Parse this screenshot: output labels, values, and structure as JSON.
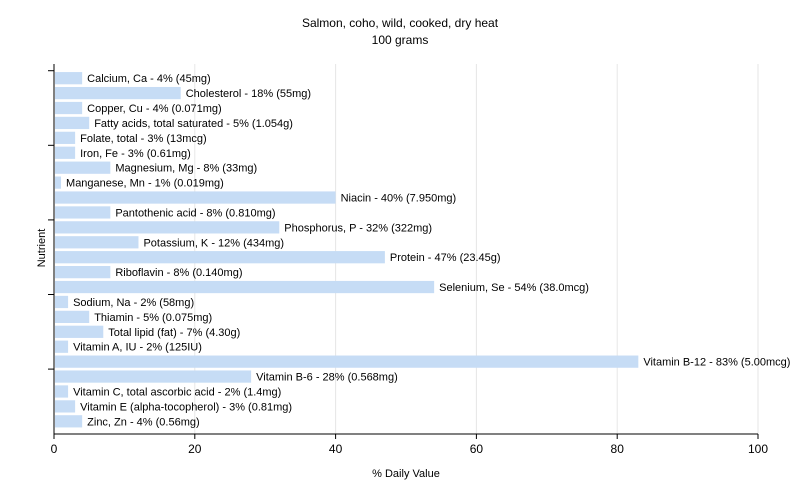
{
  "chart_data": {
    "type": "bar",
    "orientation": "horizontal",
    "title": "Salmon, coho, wild, cooked, dry heat",
    "subtitle": "100 grams",
    "xlabel": "% Daily Value",
    "ylabel": "Nutrient",
    "xlim": [
      0,
      100
    ],
    "xticks": [
      0,
      20,
      40,
      60,
      80,
      100
    ],
    "grid": true,
    "bar_color": "#c6dcf5",
    "categories": [
      "Calcium, Ca",
      "Cholesterol",
      "Copper, Cu",
      "Fatty acids, total saturated",
      "Folate, total",
      "Iron, Fe",
      "Magnesium, Mg",
      "Manganese, Mn",
      "Niacin",
      "Pantothenic acid",
      "Phosphorus, P",
      "Potassium, K",
      "Protein",
      "Riboflavin",
      "Selenium, Se",
      "Sodium, Na",
      "Thiamin",
      "Total lipid (fat)",
      "Vitamin A, IU",
      "Vitamin B-12",
      "Vitamin B-6",
      "Vitamin C, total ascorbic acid",
      "Vitamin E (alpha-tocopherol)",
      "Zinc, Zn"
    ],
    "values": [
      4,
      18,
      4,
      5,
      3,
      3,
      8,
      1,
      40,
      8,
      32,
      12,
      47,
      8,
      54,
      2,
      5,
      7,
      2,
      83,
      28,
      2,
      3,
      4
    ],
    "labels": [
      "Calcium, Ca - 4% (45mg)",
      "Cholesterol - 18% (55mg)",
      "Copper, Cu - 4% (0.071mg)",
      "Fatty acids, total saturated - 5% (1.054g)",
      "Folate, total - 3% (13mcg)",
      "Iron, Fe - 3% (0.61mg)",
      "Magnesium, Mg - 8% (33mg)",
      "Manganese, Mn - 1% (0.019mg)",
      "Niacin - 40% (7.950mg)",
      "Pantothenic acid - 8% (0.810mg)",
      "Phosphorus, P - 32% (322mg)",
      "Potassium, K - 12% (434mg)",
      "Protein - 47% (23.45g)",
      "Riboflavin - 8% (0.140mg)",
      "Selenium, Se - 54% (38.0mcg)",
      "Sodium, Na - 2% (58mg)",
      "Thiamin - 5% (0.075mg)",
      "Total lipid (fat) - 7% (4.30g)",
      "Vitamin A, IU - 2% (125IU)",
      "Vitamin B-12 - 83% (5.00mcg)",
      "Vitamin B-6 - 28% (0.568mg)",
      "Vitamin C, total ascorbic acid - 2% (1.4mg)",
      "Vitamin E (alpha-tocopherol) - 3% (0.81mg)",
      "Zinc, Zn - 4% (0.56mg)"
    ]
  }
}
